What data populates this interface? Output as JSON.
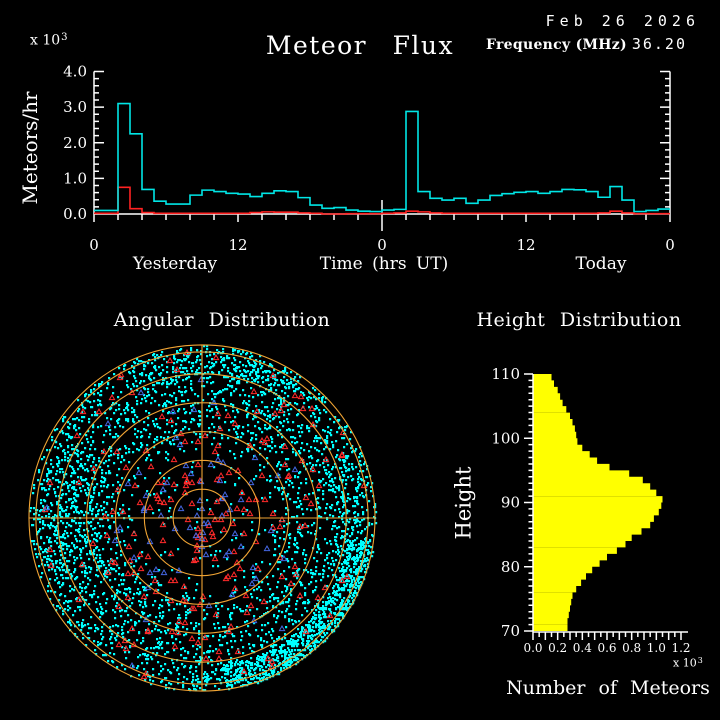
{
  "header": {
    "date": "Feb 26 2026",
    "title": "Meteor Flux",
    "frequency_label": "Frequency (MHz)",
    "frequency_value": "36.20"
  },
  "flux": {
    "ylabel": "Meteors/hr",
    "scale_base": "x 10",
    "scale_exp": "3",
    "xlabel": "Time (hrs UT)",
    "left_context": "Yesterday",
    "right_context": "Today"
  },
  "angular": {
    "title": "Angular Distribution"
  },
  "height": {
    "title": "Height Distribution",
    "ylabel": "Height",
    "xlabel": "Number of Meteors",
    "scale_base": "x 10",
    "scale_exp": "3"
  },
  "chart_data": [
    {
      "id": "flux",
      "type": "line",
      "title": "Meteor Flux",
      "ylabel": "Meteors/hr (x 10^3)",
      "xlabel": "Time (hrs UT)",
      "ylim": [
        0.0,
        4.0
      ],
      "xlim_hours": [
        0,
        48
      ],
      "bin_hours": 1,
      "y_tick_values": [
        0.0,
        1.0,
        2.0,
        3.0,
        4.0
      ],
      "y_tick_labels": [
        "0.0",
        "1.0",
        "2.0",
        "3.0",
        "4.0"
      ],
      "y_minor_step": 0.2,
      "x_tick_hours": [
        0,
        12,
        24,
        36,
        48
      ],
      "x_tick_labels": [
        "0",
        "12",
        "0",
        "12",
        "0"
      ],
      "x_minor_step_hours": 2,
      "day_divider_hour": 24,
      "context_labels": [
        "Yesterday",
        "Today"
      ],
      "series": [
        {
          "name": "cyan-rate",
          "color": "#00E6E6",
          "values": [
            0.1,
            0.1,
            3.1,
            2.25,
            0.69,
            0.36,
            0.28,
            0.28,
            0.53,
            0.67,
            0.63,
            0.58,
            0.56,
            0.49,
            0.58,
            0.65,
            0.63,
            0.46,
            0.25,
            0.16,
            0.18,
            0.11,
            0.08,
            0.07,
            0.11,
            0.13,
            2.88,
            0.63,
            0.44,
            0.39,
            0.44,
            0.3,
            0.39,
            0.52,
            0.57,
            0.61,
            0.63,
            0.58,
            0.63,
            0.69,
            0.68,
            0.63,
            0.47,
            0.77,
            0.39,
            0.07,
            0.1,
            0.14
          ]
        },
        {
          "name": "red-rate",
          "color": "#FF2222",
          "values": [
            0.02,
            0.02,
            0.75,
            0.15,
            0.04,
            0.02,
            0.02,
            0.02,
            0.02,
            0.02,
            0.02,
            0.02,
            0.02,
            0.04,
            0.06,
            0.05,
            0.05,
            0.03,
            0.02,
            0.0,
            0.0,
            0.01,
            0.01,
            0.01,
            0.02,
            0.03,
            0.08,
            0.06,
            0.03,
            0.02,
            0.02,
            0.02,
            0.02,
            0.02,
            0.02,
            0.02,
            0.02,
            0.02,
            0.02,
            0.02,
            0.02,
            0.02,
            0.03,
            0.08,
            0.03,
            0.01,
            0.01,
            0.01
          ]
        }
      ]
    },
    {
      "id": "angular",
      "type": "scatter",
      "title": "Angular Distribution",
      "grid_color": "#F0A434",
      "rings": 6,
      "double_outer_ring_fraction": 0.96,
      "seed": 1337,
      "groups": [
        {
          "name": "cyan-dots-outer",
          "color": "#00FFFF",
          "shape": "square",
          "count": 2500,
          "rmin": 0.4,
          "rmax": 1.0,
          "amin": 0,
          "amax": 360,
          "bias": 0.55
        },
        {
          "name": "cyan-dots-inner",
          "color": "#00FFFF",
          "shape": "square",
          "count": 500,
          "rmin": 0.02,
          "rmax": 1.0,
          "amin": 0,
          "amax": 360,
          "bias": 0.5
        },
        {
          "name": "cyan-blob-bottom-right",
          "color": "#00FFFF",
          "shape": "square",
          "count": 700,
          "rmin": 0.85,
          "rmax": 0.995,
          "amin": -82,
          "amax": -8,
          "bias": 1.0
        },
        {
          "name": "cyan-blob-left",
          "color": "#00FFFF",
          "shape": "square",
          "count": 260,
          "rmin": 0.6,
          "rmax": 0.95,
          "amin": 150,
          "amax": 210,
          "bias": 1.0
        },
        {
          "name": "cyan-blob-top",
          "color": "#00FFFF",
          "shape": "square",
          "count": 180,
          "rmin": 0.8,
          "rmax": 1.0,
          "amin": 55,
          "amax": 115,
          "bias": 1.0
        },
        {
          "name": "cyan-blob-right",
          "color": "#00FFFF",
          "shape": "square",
          "count": 160,
          "rmin": 0.75,
          "rmax": 1.0,
          "amin": -25,
          "amax": 25,
          "bias": 1.0
        },
        {
          "name": "red-triangles-mid",
          "color": "#FF2A2A",
          "shape": "triangle",
          "count": 170,
          "rmin": 0.04,
          "rmax": 0.8,
          "amin": 0,
          "amax": 360,
          "bias": 0.8
        },
        {
          "name": "red-triangles-edge",
          "color": "#FF2A2A",
          "shape": "triangle",
          "count": 45,
          "rmin": 0.8,
          "rmax": 0.98,
          "amin": 0,
          "amax": 360,
          "bias": 1.0
        },
        {
          "name": "blue-triangles-center",
          "color": "#4466E0",
          "shape": "triangle",
          "count": 60,
          "rmin": 0.03,
          "rmax": 0.55,
          "amin": 0,
          "amax": 360,
          "bias": 0.9
        },
        {
          "name": "blue-triangles-outer",
          "color": "#4466E0",
          "shape": "triangle",
          "count": 12,
          "rmin": 0.6,
          "rmax": 0.95,
          "amin": 0,
          "amax": 360,
          "bias": 1.0
        }
      ]
    },
    {
      "id": "height",
      "type": "bar",
      "orientation": "horizontal",
      "title": "Height Distribution",
      "ylabel": "Height",
      "xlabel": "Number of Meteors (x 10^3)",
      "bar_color": "#FFFF00",
      "ylim": [
        70,
        110
      ],
      "xlim": [
        0.0,
        1.2
      ],
      "bin_km": 1,
      "y_tick_values": [
        70,
        80,
        90,
        100,
        110
      ],
      "y_tick_labels": [
        "70",
        "80",
        "90",
        "100",
        "110"
      ],
      "x_tick_values": [
        0.0,
        0.2,
        0.4,
        0.6,
        0.8,
        1.0,
        1.2
      ],
      "x_tick_labels": [
        "0.0",
        "0.2",
        "0.4",
        "0.6",
        "0.8",
        "1.0",
        "1.2"
      ],
      "x_minor_step": 0.05,
      "values_top_110_to_bottom_70": [
        0.15,
        0.17,
        0.2,
        0.22,
        0.24,
        0.27,
        0.3,
        0.32,
        0.34,
        0.35,
        0.36,
        0.4,
        0.46,
        0.52,
        0.62,
        0.78,
        0.89,
        0.95,
        1.0,
        1.05,
        1.04,
        1.02,
        0.98,
        0.95,
        0.88,
        0.8,
        0.75,
        0.68,
        0.6,
        0.54,
        0.48,
        0.43,
        0.39,
        0.35,
        0.32,
        0.31,
        0.3,
        0.29,
        0.28,
        0.28
      ]
    }
  ]
}
